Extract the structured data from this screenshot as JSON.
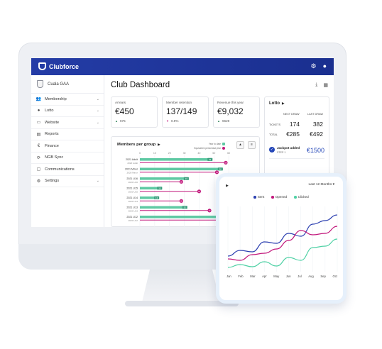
{
  "app": {
    "brand": "Clubforce"
  },
  "topbar": {
    "settings_icon": "gear-icon",
    "account_icon": "user-icon"
  },
  "sidebar": {
    "club_name": "Cuala GAA",
    "items": [
      {
        "label": "Membership",
        "icon": "people-icon",
        "glyph": "👥",
        "has_chevron": true
      },
      {
        "label": "Lotto",
        "icon": "toggle-icon",
        "glyph": "●",
        "has_chevron": true
      },
      {
        "label": "Website",
        "icon": "website-icon",
        "glyph": "▭",
        "has_chevron": true
      },
      {
        "label": "Reports",
        "icon": "report-icon",
        "glyph": "▤",
        "has_chevron": false
      },
      {
        "label": "Finance",
        "icon": "euro-icon",
        "glyph": "€",
        "has_chevron": false
      },
      {
        "label": "NGB Sync",
        "icon": "sync-icon",
        "glyph": "⟳",
        "has_chevron": false
      },
      {
        "label": "Communications",
        "icon": "message-icon",
        "glyph": "▢",
        "has_chevron": false
      },
      {
        "label": "Settings",
        "icon": "gear-icon",
        "glyph": "⚙",
        "has_chevron": true
      }
    ]
  },
  "dashboard": {
    "title": "Club Dashboard",
    "kpis": [
      {
        "label": "Arrears",
        "value": "€450",
        "delta": "€75",
        "trend": "up"
      },
      {
        "label": "Member retention",
        "value": "137/149",
        "delta": "0.9%",
        "trend": "down"
      },
      {
        "label": "Revenue this year",
        "value": "€9,032",
        "delta": "€629",
        "trend": "up"
      }
    ],
    "lotto": {
      "title": "Lotto",
      "next_draw_label": "NEXT DRAW",
      "last_draw_label": "LAST DRAW",
      "tickets_label": "TICKETS",
      "total_label": "TOTAL",
      "tickets_next": "174",
      "tickets_last": "382",
      "total_next": "€285",
      "total_last": "€492",
      "jackpot_label": "Jackpot added",
      "jackpot_step": "STEP 1",
      "jackpot_value": "€1500"
    },
    "members_chart": {
      "title": "Members per group",
      "legend_current": "Year to date",
      "legend_previous": "Equivalent period last year"
    }
  },
  "phone": {
    "range_label": "Last 12 Months",
    "legend": [
      {
        "name": "Sent",
        "color": "#2b3fb0"
      },
      {
        "name": "Opened",
        "color": "#c2187c"
      },
      {
        "name": "Clicked",
        "color": "#4fd1a5"
      }
    ]
  },
  "chart_data": [
    {
      "type": "bar",
      "title": "Members per group",
      "categories": [
        "2021 Adult",
        "2021 Minor",
        "2021 U16",
        "2021 U15",
        "2021 U14",
        "2021 U13",
        "2021 U12"
      ],
      "category_sublabels": [
        "2020 Adult",
        "2020 Minor",
        "2020 U16",
        "2020 U15",
        "2020 U14",
        "2020 U13",
        "2020 U12"
      ],
      "series": [
        {
          "name": "Year to date",
          "color": "#5fc9a3",
          "values": [
            49,
            56,
            33,
            15,
            13,
            32,
            66
          ]
        },
        {
          "name": "Equivalent period last year",
          "color": "#c2187c",
          "values": [
            58,
            52,
            28,
            40,
            28,
            47,
            55
          ]
        }
      ],
      "x_ticks": [
        "0",
        "10",
        "20",
        "30",
        "40",
        "50",
        "60"
      ],
      "xlim": [
        0,
        70
      ]
    },
    {
      "type": "line",
      "x": [
        "Jan",
        "Feb",
        "Mar",
        "Apr",
        "May",
        "Jun",
        "Jul",
        "Aug",
        "Sep",
        "Oct"
      ],
      "series": [
        {
          "name": "Sent",
          "color": "#2b3fb0",
          "values": [
            10,
            18,
            16,
            30,
            28,
            42,
            38,
            55,
            60,
            68
          ]
        },
        {
          "name": "Opened",
          "color": "#c2187c",
          "values": [
            6,
            4,
            12,
            14,
            20,
            32,
            46,
            40,
            42,
            52
          ]
        },
        {
          "name": "Clicked",
          "color": "#4fd1a5",
          "values": [
            -6,
            -2,
            -5,
            2,
            -4,
            8,
            4,
            22,
            24,
            34
          ]
        }
      ],
      "ylim": [
        -12,
        80
      ]
    }
  ]
}
